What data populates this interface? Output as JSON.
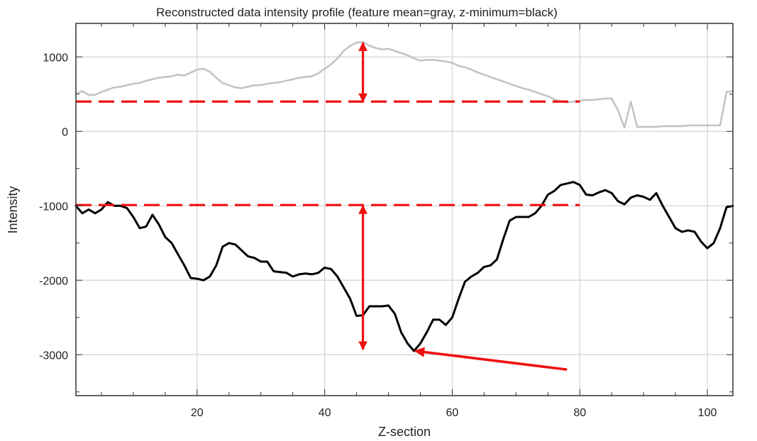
{
  "colors": {
    "feature_mean": "#c4c4c4",
    "z_minimum": "#000000",
    "annotation": "#ee1111",
    "grid": "#d2d2d2",
    "frame": "#333333"
  },
  "chart_data": {
    "type": "line",
    "title": "Reconstructed data intensity profile (feature mean=gray, z-minimum=black)",
    "xlabel": "Z-section",
    "ylabel": "Intensity",
    "xlim": [
      1,
      104
    ],
    "ylim": [
      -3550,
      1450
    ],
    "x_ticks": [
      20,
      40,
      60,
      80,
      100
    ],
    "y_ticks": [
      -3000,
      -2000,
      -1000,
      0,
      1000
    ],
    "x_tick_labels": [
      "20",
      "40",
      "60",
      "80",
      "100"
    ],
    "y_tick_labels": [
      "-3000",
      "-2000",
      "-1000",
      "0",
      "1000"
    ],
    "grid": true,
    "legend": "none",
    "series": [
      {
        "color": "gray",
        "x": [
          1,
          2,
          3,
          4,
          5,
          6,
          7,
          8,
          9,
          10,
          11,
          12,
          13,
          14,
          15,
          16,
          17,
          18,
          19,
          20,
          21,
          22,
          23,
          24,
          25,
          26,
          27,
          28,
          29,
          30,
          31,
          32,
          33,
          34,
          35,
          36,
          37,
          38,
          39,
          40,
          41,
          42,
          43,
          44,
          45,
          46,
          47,
          48,
          49,
          50,
          51,
          52,
          53,
          54,
          55,
          56,
          57,
          58,
          59,
          60,
          61,
          62,
          63,
          64,
          65,
          66,
          67,
          68,
          69,
          70,
          71,
          72,
          73,
          74,
          75,
          76,
          77,
          78,
          79,
          80,
          81,
          82,
          83,
          84,
          85,
          86,
          87,
          88,
          89,
          90,
          91,
          92,
          93,
          94,
          95,
          96,
          97,
          98,
          99,
          100,
          101,
          102,
          103,
          104
        ],
        "values": [
          500,
          540,
          490,
          490,
          530,
          560,
          590,
          600,
          620,
          640,
          650,
          680,
          700,
          720,
          730,
          740,
          760,
          750,
          790,
          830,
          840,
          800,
          720,
          650,
          620,
          590,
          580,
          600,
          620,
          620,
          640,
          650,
          660,
          680,
          700,
          720,
          730,
          740,
          780,
          840,
          900,
          980,
          1080,
          1150,
          1190,
          1200,
          1150,
          1120,
          1100,
          1110,
          1080,
          1050,
          1020,
          980,
          950,
          960,
          960,
          950,
          940,
          920,
          880,
          860,
          830,
          790,
          760,
          730,
          700,
          670,
          640,
          610,
          580,
          560,
          530,
          500,
          470,
          430,
          400,
          390,
          400,
          410,
          420,
          420,
          430,
          440,
          440,
          280,
          50,
          400,
          60,
          60,
          60,
          60,
          70,
          70,
          70,
          70,
          80,
          80,
          80,
          80,
          80,
          80,
          530,
          540
        ]
      },
      {
        "color": "black",
        "x": [
          1,
          2,
          3,
          4,
          5,
          6,
          7,
          8,
          9,
          10,
          11,
          12,
          13,
          14,
          15,
          16,
          17,
          18,
          19,
          20,
          21,
          22,
          23,
          24,
          25,
          26,
          27,
          28,
          29,
          30,
          31,
          32,
          33,
          34,
          35,
          36,
          37,
          38,
          39,
          40,
          41,
          42,
          43,
          44,
          45,
          46,
          47,
          48,
          49,
          50,
          51,
          52,
          53,
          54,
          55,
          56,
          57,
          58,
          59,
          60,
          61,
          62,
          63,
          64,
          65,
          66,
          67,
          68,
          69,
          70,
          71,
          72,
          73,
          74,
          75,
          76,
          77,
          78,
          79,
          80,
          81,
          82,
          83,
          84,
          85,
          86,
          87,
          88,
          89,
          90,
          91,
          92,
          93,
          94,
          95,
          96,
          97,
          98,
          99,
          100,
          101,
          102,
          103,
          104
        ],
        "values": [
          -1000,
          -1100,
          -1050,
          -1100,
          -1050,
          -950,
          -1000,
          -1000,
          -1030,
          -1150,
          -1300,
          -1280,
          -1120,
          -1250,
          -1420,
          -1500,
          -1650,
          -1800,
          -1970,
          -1980,
          -2000,
          -1950,
          -1800,
          -1550,
          -1500,
          -1520,
          -1600,
          -1680,
          -1700,
          -1750,
          -1750,
          -1880,
          -1890,
          -1900,
          -1950,
          -1920,
          -1910,
          -1920,
          -1900,
          -1830,
          -1850,
          -1950,
          -2100,
          -2250,
          -2480,
          -2470,
          -2350,
          -2350,
          -2350,
          -2340,
          -2450,
          -2700,
          -2850,
          -2950,
          -2850,
          -2700,
          -2530,
          -2530,
          -2600,
          -2500,
          -2250,
          -2020,
          -1950,
          -1900,
          -1820,
          -1800,
          -1720,
          -1450,
          -1200,
          -1150,
          -1150,
          -1150,
          -1100,
          -1000,
          -850,
          -800,
          -720,
          -700,
          -680,
          -720,
          -850,
          -860,
          -820,
          -790,
          -830,
          -940,
          -980,
          -890,
          -860,
          -880,
          -920,
          -830,
          -1000,
          -1150,
          -1300,
          -1350,
          -1330,
          -1350,
          -1480,
          -1570,
          -1500,
          -1300,
          -1020,
          -1000
        ]
      }
    ],
    "annotations": {
      "dashed_lines": [
        {
          "y": 400,
          "x_from": 1,
          "x_to": 80
        },
        {
          "y": -990,
          "x_from": 1,
          "x_to": 80
        }
      ],
      "double_arrows": [
        {
          "x": 46,
          "y_from": 1190,
          "y_to": 400
        },
        {
          "x": 46,
          "y_from": -1000,
          "y_to": -2930
        }
      ],
      "pointer_arrow": {
        "x_from": 78,
        "y_from": -3200,
        "x_to": 54.2,
        "y_to": -2950
      }
    }
  }
}
